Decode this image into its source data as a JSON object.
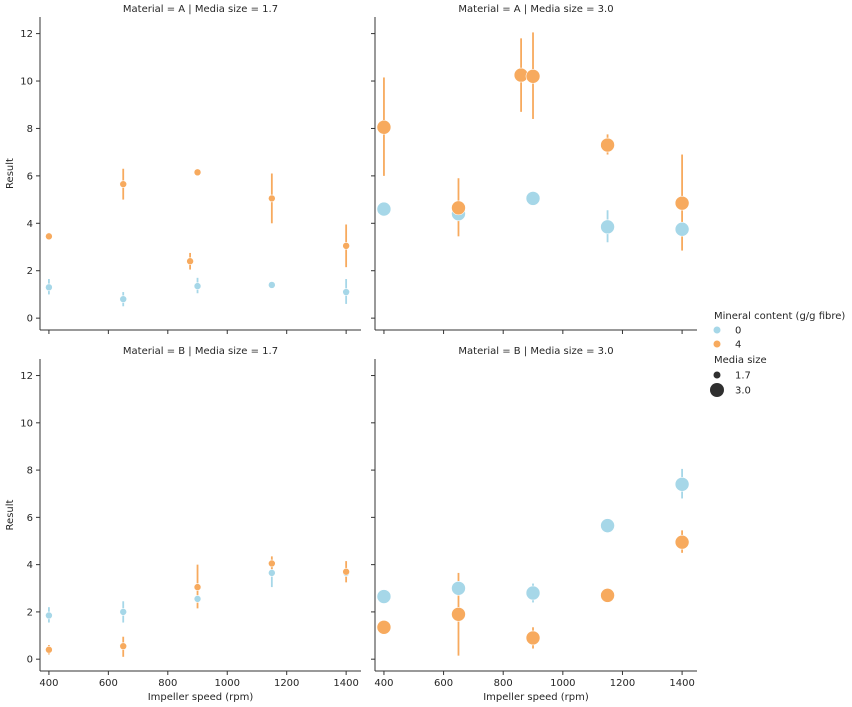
{
  "chart_data": {
    "type": "scatter",
    "xlabel": "Impeller speed (rpm)",
    "ylabel": "Result",
    "xlim": [
      370,
      1450
    ],
    "ylim": [
      -0.5,
      12.7
    ],
    "xticks": [
      400,
      600,
      800,
      1000,
      1200,
      1400
    ],
    "yticks": [
      0,
      2,
      4,
      6,
      8,
      10,
      12
    ],
    "grid": false,
    "legend_position": "right",
    "legend": {
      "hue_title": "Mineral content (g/g fibre)",
      "hue_entries": [
        {
          "label": "0",
          "color": "#a6d7e8"
        },
        {
          "label": "4",
          "color": "#f7aa5e"
        }
      ],
      "size_title": "Media size",
      "size_entries": [
        {
          "label": "1.7",
          "size": "small"
        },
        {
          "label": "3.0",
          "size": "large"
        }
      ]
    },
    "panels": [
      {
        "title": "Material = A | Media size = 1.7",
        "size": "small",
        "series": [
          {
            "hue": "0",
            "points": [
              {
                "x": 400,
                "y": 1.3,
                "lo": 1.0,
                "hi": 1.65
              },
              {
                "x": 650,
                "y": 0.8,
                "lo": 0.5,
                "hi": 1.1
              },
              {
                "x": 900,
                "y": 1.35,
                "lo": 1.05,
                "hi": 1.7
              },
              {
                "x": 1150,
                "y": 1.4,
                "lo": 1.35,
                "hi": 1.45
              },
              {
                "x": 1400,
                "y": 1.1,
                "lo": 0.6,
                "hi": 1.65
              }
            ]
          },
          {
            "hue": "4",
            "points": [
              {
                "x": 400,
                "y": 3.45,
                "lo": 3.3,
                "hi": 3.6
              },
              {
                "x": 650,
                "y": 5.65,
                "lo": 5.0,
                "hi": 6.3
              },
              {
                "x": 875,
                "y": 2.4,
                "lo": 2.05,
                "hi": 2.75
              },
              {
                "x": 900,
                "y": 6.15,
                "lo": 6.05,
                "hi": 6.25
              },
              {
                "x": 1150,
                "y": 5.05,
                "lo": 4.0,
                "hi": 6.1
              },
              {
                "x": 1400,
                "y": 3.05,
                "lo": 2.15,
                "hi": 3.95
              }
            ]
          }
        ]
      },
      {
        "title": "Material = A | Media size = 3.0",
        "size": "large",
        "series": [
          {
            "hue": "0",
            "points": [
              {
                "x": 400,
                "y": 4.6,
                "lo": 4.6,
                "hi": 4.6
              },
              {
                "x": 650,
                "y": 4.4,
                "lo": 4.2,
                "hi": 4.6
              },
              {
                "x": 900,
                "y": 5.05,
                "lo": 5.05,
                "hi": 5.05
              },
              {
                "x": 1150,
                "y": 3.85,
                "lo": 3.2,
                "hi": 4.55
              },
              {
                "x": 1400,
                "y": 3.75,
                "lo": 3.6,
                "hi": 3.9
              }
            ]
          },
          {
            "hue": "4",
            "points": [
              {
                "x": 400,
                "y": 8.05,
                "lo": 6.0,
                "hi": 10.15
              },
              {
                "x": 650,
                "y": 4.65,
                "lo": 3.45,
                "hi": 5.9
              },
              {
                "x": 860,
                "y": 10.25,
                "lo": 8.7,
                "hi": 11.8
              },
              {
                "x": 900,
                "y": 10.2,
                "lo": 8.4,
                "hi": 12.05
              },
              {
                "x": 1150,
                "y": 7.3,
                "lo": 6.9,
                "hi": 7.75
              },
              {
                "x": 1400,
                "y": 4.85,
                "lo": 2.85,
                "hi": 6.9
              }
            ]
          }
        ]
      },
      {
        "title": "Material = B | Media size = 1.7",
        "size": "small",
        "series": [
          {
            "hue": "0",
            "points": [
              {
                "x": 400,
                "y": 1.85,
                "lo": 1.55,
                "hi": 2.2
              },
              {
                "x": 650,
                "y": 2.0,
                "lo": 1.55,
                "hi": 2.45
              },
              {
                "x": 900,
                "y": 2.55,
                "lo": 2.4,
                "hi": 2.7
              },
              {
                "x": 1150,
                "y": 3.65,
                "lo": 3.05,
                "hi": 4.25
              },
              {
                "x": 1400,
                "y": 3.65,
                "lo": 3.45,
                "hi": 3.85
              }
            ]
          },
          {
            "hue": "4",
            "points": [
              {
                "x": 400,
                "y": 0.4,
                "lo": 0.2,
                "hi": 0.6
              },
              {
                "x": 650,
                "y": 0.55,
                "lo": 0.1,
                "hi": 0.95
              },
              {
                "x": 900,
                "y": 3.05,
                "lo": 2.15,
                "hi": 4.0
              },
              {
                "x": 1150,
                "y": 4.05,
                "lo": 3.8,
                "hi": 4.35
              },
              {
                "x": 1400,
                "y": 3.7,
                "lo": 3.25,
                "hi": 4.15
              }
            ]
          }
        ]
      },
      {
        "title": "Material = B | Media size = 3.0",
        "size": "large",
        "series": [
          {
            "hue": "0",
            "points": [
              {
                "x": 400,
                "y": 2.65,
                "lo": 2.65,
                "hi": 2.65
              },
              {
                "x": 650,
                "y": 3.0,
                "lo": 2.8,
                "hi": 3.2
              },
              {
                "x": 900,
                "y": 2.8,
                "lo": 2.4,
                "hi": 3.2
              },
              {
                "x": 1150,
                "y": 5.65,
                "lo": 5.65,
                "hi": 5.65
              },
              {
                "x": 1400,
                "y": 7.4,
                "lo": 6.8,
                "hi": 8.05
              }
            ]
          },
          {
            "hue": "4",
            "points": [
              {
                "x": 400,
                "y": 1.35,
                "lo": 1.35,
                "hi": 1.35
              },
              {
                "x": 650,
                "y": 1.9,
                "lo": 0.15,
                "hi": 3.65
              },
              {
                "x": 900,
                "y": 0.9,
                "lo": 0.45,
                "hi": 1.35
              },
              {
                "x": 1150,
                "y": 2.7,
                "lo": 2.7,
                "hi": 2.7
              },
              {
                "x": 1400,
                "y": 4.95,
                "lo": 4.5,
                "hi": 5.45
              }
            ]
          }
        ]
      }
    ]
  }
}
